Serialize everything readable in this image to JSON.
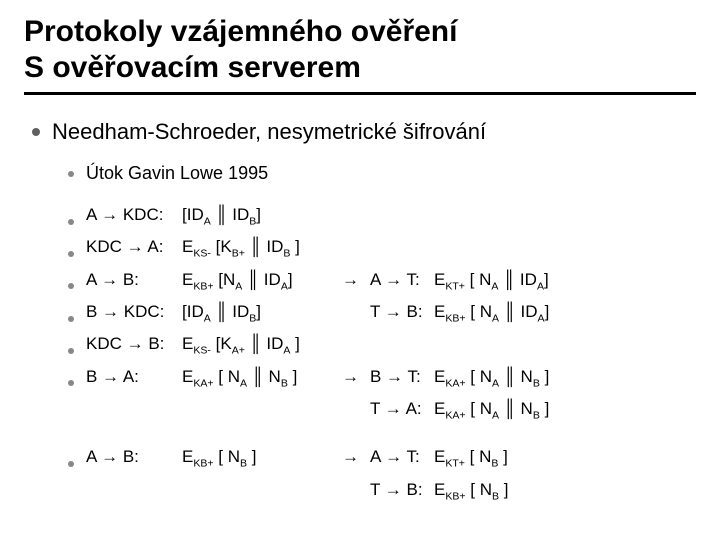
{
  "colors": {
    "background": "#ffffff",
    "text": "#000000",
    "bullet_l1": "#606060",
    "bullet_l2": "#878787",
    "underline": "#000000"
  },
  "typography": {
    "title_fontsize": 30,
    "title_weight": 700,
    "level1_fontsize": 22,
    "level2_fontsize": 18,
    "body_fontsize": 17,
    "font_family": "Arial"
  },
  "title_line1": "Protokoly vzájemného ověření",
  "title_line2": "S ověřovacím serverem",
  "heading": "Needham-Schroeder, nesymetrické šifrování",
  "subheading": "Útok Gavin Lowe 1995",
  "rows": [
    {
      "dot": true,
      "step": "A → KDC:",
      "msg": "[ID<sub>A</sub> ║ ID<sub>B</sub>]",
      "arrow": "",
      "step2": "",
      "msg2": ""
    },
    {
      "dot": true,
      "step": "KDC → A:",
      "msg": "E<sub>KS-</sub> [K<sub>B+</sub> ║ ID<sub>B</sub> ]",
      "arrow": "",
      "step2": "",
      "msg2": ""
    },
    {
      "dot": true,
      "step": "A → B:",
      "msg": "E<sub>KB+</sub> [N<sub>A</sub> ║ ID<sub>A</sub>]",
      "arrow": "→",
      "step2": "A → T:",
      "msg2": "E<sub>KT+</sub> [ N<sub>A</sub> ║ ID<sub>A</sub>]"
    },
    {
      "dot": true,
      "step": "B → KDC:",
      "msg": "[ID<sub>A</sub> ║ ID<sub>B</sub>]",
      "arrow": "",
      "step2": "T → B:",
      "msg2": "E<sub>KB+</sub> [ N<sub>A</sub> ║ ID<sub>A</sub>]"
    },
    {
      "dot": true,
      "step": "KDC → B:",
      "msg": "E<sub>KS-</sub> [K<sub>A+</sub> ║ ID<sub>A</sub> ]",
      "arrow": "",
      "step2": "",
      "msg2": ""
    },
    {
      "dot": true,
      "step": "B → A:",
      "msg": "E<sub>KA+</sub> [ N<sub>A</sub> ║ N<sub>B</sub>  ]",
      "arrow": "→",
      "step2": "B → T:",
      "msg2": "E<sub>KA+</sub> [ N<sub>A</sub> ║ N<sub>B</sub>  ]"
    },
    {
      "dot": false,
      "step": "",
      "msg": "",
      "arrow": "",
      "step2": "T → A:",
      "msg2": "E<sub>KA+</sub> [ N<sub>A</sub> ║ N<sub>B</sub>  ]"
    },
    {
      "dot": true,
      "step": "A → B:",
      "msg": "E<sub>KB+</sub> [ N<sub>B</sub> ]",
      "arrow": "→",
      "step2": "A → T:",
      "msg2": "E<sub>KT+</sub> [ N<sub>B</sub> ]"
    },
    {
      "dot": false,
      "step": "",
      "msg": "",
      "arrow": "",
      "step2": "T → B:",
      "msg2": "E<sub>KB+</sub> [ N<sub>B</sub> ]"
    }
  ]
}
